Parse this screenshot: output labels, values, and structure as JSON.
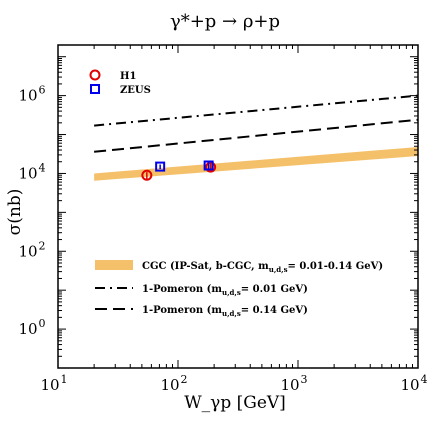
{
  "chart_data": {
    "type": "line",
    "title": "γ*+p → ρ+p",
    "xlabel": "W_γp [GeV]",
    "ylabel": "σ(nb)",
    "x_scale": "log",
    "y_scale": "log",
    "xlim": [
      10,
      10000
    ],
    "ylim": [
      0.1,
      20000000
    ],
    "x_ticks": [
      {
        "value": 10,
        "base": "10",
        "exp": "1"
      },
      {
        "value": 100,
        "base": "10",
        "exp": "2"
      },
      {
        "value": 1000,
        "base": "10",
        "exp": "3"
      },
      {
        "value": 10000,
        "base": "10",
        "exp": "4"
      }
    ],
    "y_ticks": [
      {
        "value": 1,
        "base": "10",
        "exp": "0"
      },
      {
        "value": 100,
        "base": "10",
        "exp": "2"
      },
      {
        "value": 10000,
        "base": "10",
        "exp": "4"
      },
      {
        "value": 1000000,
        "base": "10",
        "exp": "6"
      }
    ],
    "band": {
      "name": "CGC (IP-Sat, b-CGC, m",
      "name_sub": "u,d,s",
      "name_rest": "= 0.01-0.14 GeV)",
      "color": "#f5c06a",
      "x": [
        20,
        10000
      ],
      "y_low": [
        6500,
        28000
      ],
      "y_high": [
        10000,
        48000
      ]
    },
    "series": [
      {
        "name": "1-Pomeron (m",
        "name_sub": "u,d,s",
        "name_rest": "= 0.01 GeV)",
        "style": "dash-dot",
        "x": [
          20,
          10000
        ],
        "y": [
          170000,
          1000000
        ]
      },
      {
        "name": "1-Pomeron (m",
        "name_sub": "u,d,s",
        "name_rest": "= 0.14 GeV)",
        "style": "dashed",
        "x": [
          20,
          10000
        ],
        "y": [
          36000,
          240000
        ]
      }
    ],
    "points": [
      {
        "name": "H1",
        "marker": "circle",
        "color": "#e00000",
        "x": [
          55,
          187
        ],
        "y": [
          9000,
          14500
        ],
        "err": [
          1800,
          3500
        ]
      },
      {
        "name": "ZEUS",
        "marker": "square",
        "color": "#0000ee",
        "x": [
          71,
          180
        ],
        "y": [
          15000,
          16000
        ],
        "err": [
          2000,
          3000
        ]
      }
    ],
    "legend_position": "top-left / lower-center"
  }
}
